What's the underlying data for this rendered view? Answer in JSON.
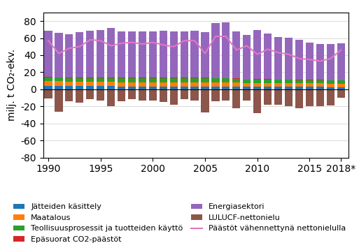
{
  "chart_data": {
    "type": "bar",
    "stacked": true,
    "ylabel": "milj. t CO₂-ekv.",
    "x": [
      1990,
      1991,
      1992,
      1993,
      1994,
      1995,
      1996,
      1997,
      1998,
      1999,
      2000,
      2001,
      2002,
      2003,
      2004,
      2005,
      2006,
      2007,
      2008,
      2009,
      2010,
      2011,
      2012,
      2013,
      2014,
      2015,
      2016,
      2017,
      2018
    ],
    "xlim": [
      1989.5,
      2018.7
    ],
    "xticks": [
      1990,
      1995,
      2000,
      2005,
      2010,
      2015,
      {
        "value": 2018,
        "label": "2018*"
      }
    ],
    "ylim": [
      -80,
      90
    ],
    "yticks": [
      -80,
      -60,
      -40,
      -20,
      0,
      20,
      40,
      60,
      80
    ],
    "grid": true,
    "legend": "lower center",
    "series": [
      {
        "name": "Jätteiden käsittely",
        "values": [
          4.0,
          4.0,
          4.0,
          4.0,
          3.8,
          3.8,
          3.8,
          3.5,
          3.5,
          3.5,
          3.5,
          3.5,
          3.5,
          3.5,
          3.5,
          3.5,
          3.5,
          3.5,
          3.5,
          3.0,
          3.0,
          3.0,
          3.0,
          3.0,
          2.8,
          2.8,
          2.8,
          2.5,
          2.5
        ]
      },
      {
        "name": "Maatalous",
        "values": [
          5.5,
          5.3,
          5.2,
          5.0,
          5.0,
          5.0,
          4.8,
          4.8,
          4.8,
          4.8,
          4.8,
          4.8,
          4.8,
          4.8,
          4.8,
          4.8,
          4.8,
          4.8,
          4.8,
          4.6,
          4.6,
          4.6,
          4.5,
          4.5,
          4.3,
          4.2,
          4.2,
          4.2,
          4.2
        ]
      },
      {
        "name": "Teollisuusprosessit ja tuotteiden käyttö",
        "values": [
          4.5,
          4.3,
          4.0,
          4.2,
          4.5,
          4.5,
          4.5,
          4.8,
          4.8,
          4.8,
          5.0,
          5.0,
          5.0,
          5.0,
          5.0,
          5.0,
          4.5,
          4.5,
          4.0,
          3.5,
          4.0,
          4.0,
          3.5,
          3.5,
          3.5,
          3.5,
          3.5,
          3.5,
          3.5
        ]
      },
      {
        "name": "Epäsuorat CO2-päästöt",
        "values": [
          0.5,
          0.5,
          0.5,
          0.5,
          0.5,
          0.5,
          0.5,
          0.5,
          0.5,
          0.5,
          0.5,
          0.5,
          0.5,
          0.5,
          0.5,
          0.5,
          0.5,
          0.5,
          0.5,
          0.5,
          0.5,
          0.5,
          0.5,
          0.5,
          0.5,
          0.5,
          0.5,
          0.5,
          0.5
        ]
      },
      {
        "name": "Energiasektori",
        "values": [
          54,
          52,
          51,
          53,
          55,
          56,
          58,
          54,
          54,
          54,
          54,
          55,
          54,
          54,
          55,
          53,
          64,
          65,
          55,
          52,
          57,
          53,
          50,
          49,
          47,
          44,
          42,
          42,
          43
        ]
      },
      {
        "name": "LULUCF-nettonielu",
        "values": [
          -11,
          -26,
          -14,
          -16,
          -12,
          -13,
          -20,
          -14,
          -12,
          -13,
          -13,
          -15,
          -18,
          -12,
          -13,
          -27,
          -14,
          -13,
          -22,
          -13,
          -28,
          -18,
          -18,
          -20,
          -22,
          -20,
          -20,
          -19,
          -10
        ]
      },
      {
        "name": "Päästöt vähennettynä nettonielulla",
        "type": "line",
        "values": [
          57,
          42,
          48,
          50,
          58,
          57,
          51,
          54,
          55,
          53,
          55,
          52,
          50,
          57,
          57,
          42,
          62,
          62,
          46,
          51,
          41,
          47,
          43,
          41,
          36,
          35,
          33,
          36,
          46
        ]
      }
    ]
  }
}
